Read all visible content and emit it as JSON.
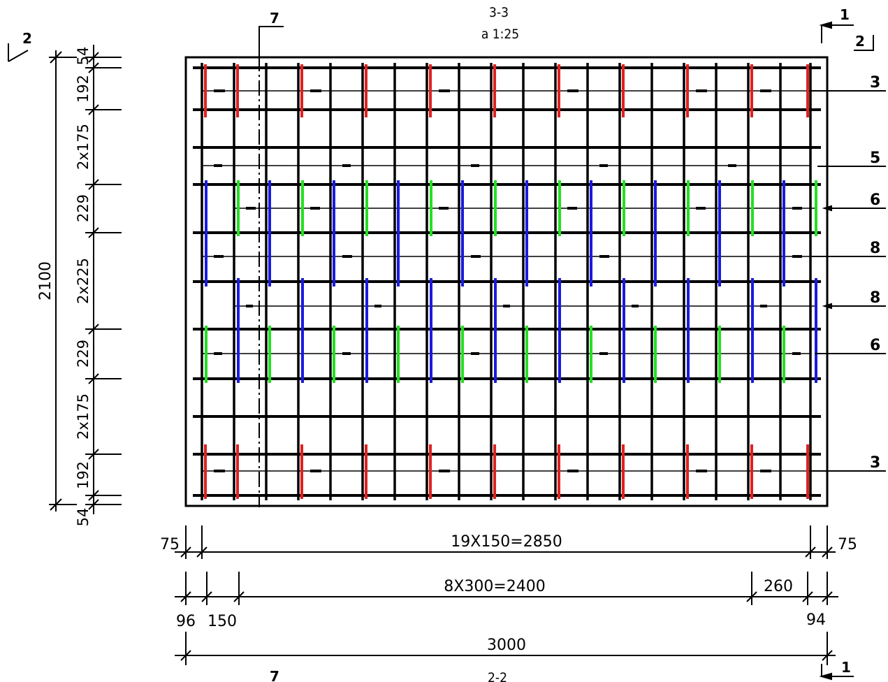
{
  "section_title": {
    "name": "3-3",
    "scale": "а 1:25"
  },
  "bottom_section_label": "2-2",
  "cut_markers": {
    "left_top": "2",
    "right_top_1": "1",
    "right_top_2": "2",
    "right_bottom_1": "1"
  },
  "bar_callouts": [
    {
      "mark": "7",
      "color": "#000000"
    },
    {
      "mark": "3",
      "color": "#e02020"
    },
    {
      "mark": "5",
      "color": "#000000"
    },
    {
      "mark": "6",
      "color": "#22e022"
    },
    {
      "mark": "8",
      "color": "#1a1ae0"
    },
    {
      "mark": "8",
      "color": "#1a1ae0"
    },
    {
      "mark": "6",
      "color": "#22e022"
    },
    {
      "mark": "3",
      "color": "#e02020"
    },
    {
      "mark": "7",
      "color": "#000000"
    }
  ],
  "vertical_dimensions": {
    "overall": "2100",
    "segments": [
      "54",
      "192",
      "2x175",
      "229",
      "2x225",
      "229",
      "2x175",
      "192",
      "54"
    ]
  },
  "horizontal_dimensions": {
    "row1": {
      "left": "75",
      "middle": "19X150=2850",
      "right": "75"
    },
    "row2": {
      "middle": "8X300=2400",
      "right": "260",
      "left_below_1": "96",
      "left_below_2": "150",
      "right_below": "94"
    },
    "overall": "3000"
  },
  "colors": {
    "red": "#e02020",
    "green": "#22e022",
    "blue": "#1a1ae0",
    "black": "#000000"
  }
}
